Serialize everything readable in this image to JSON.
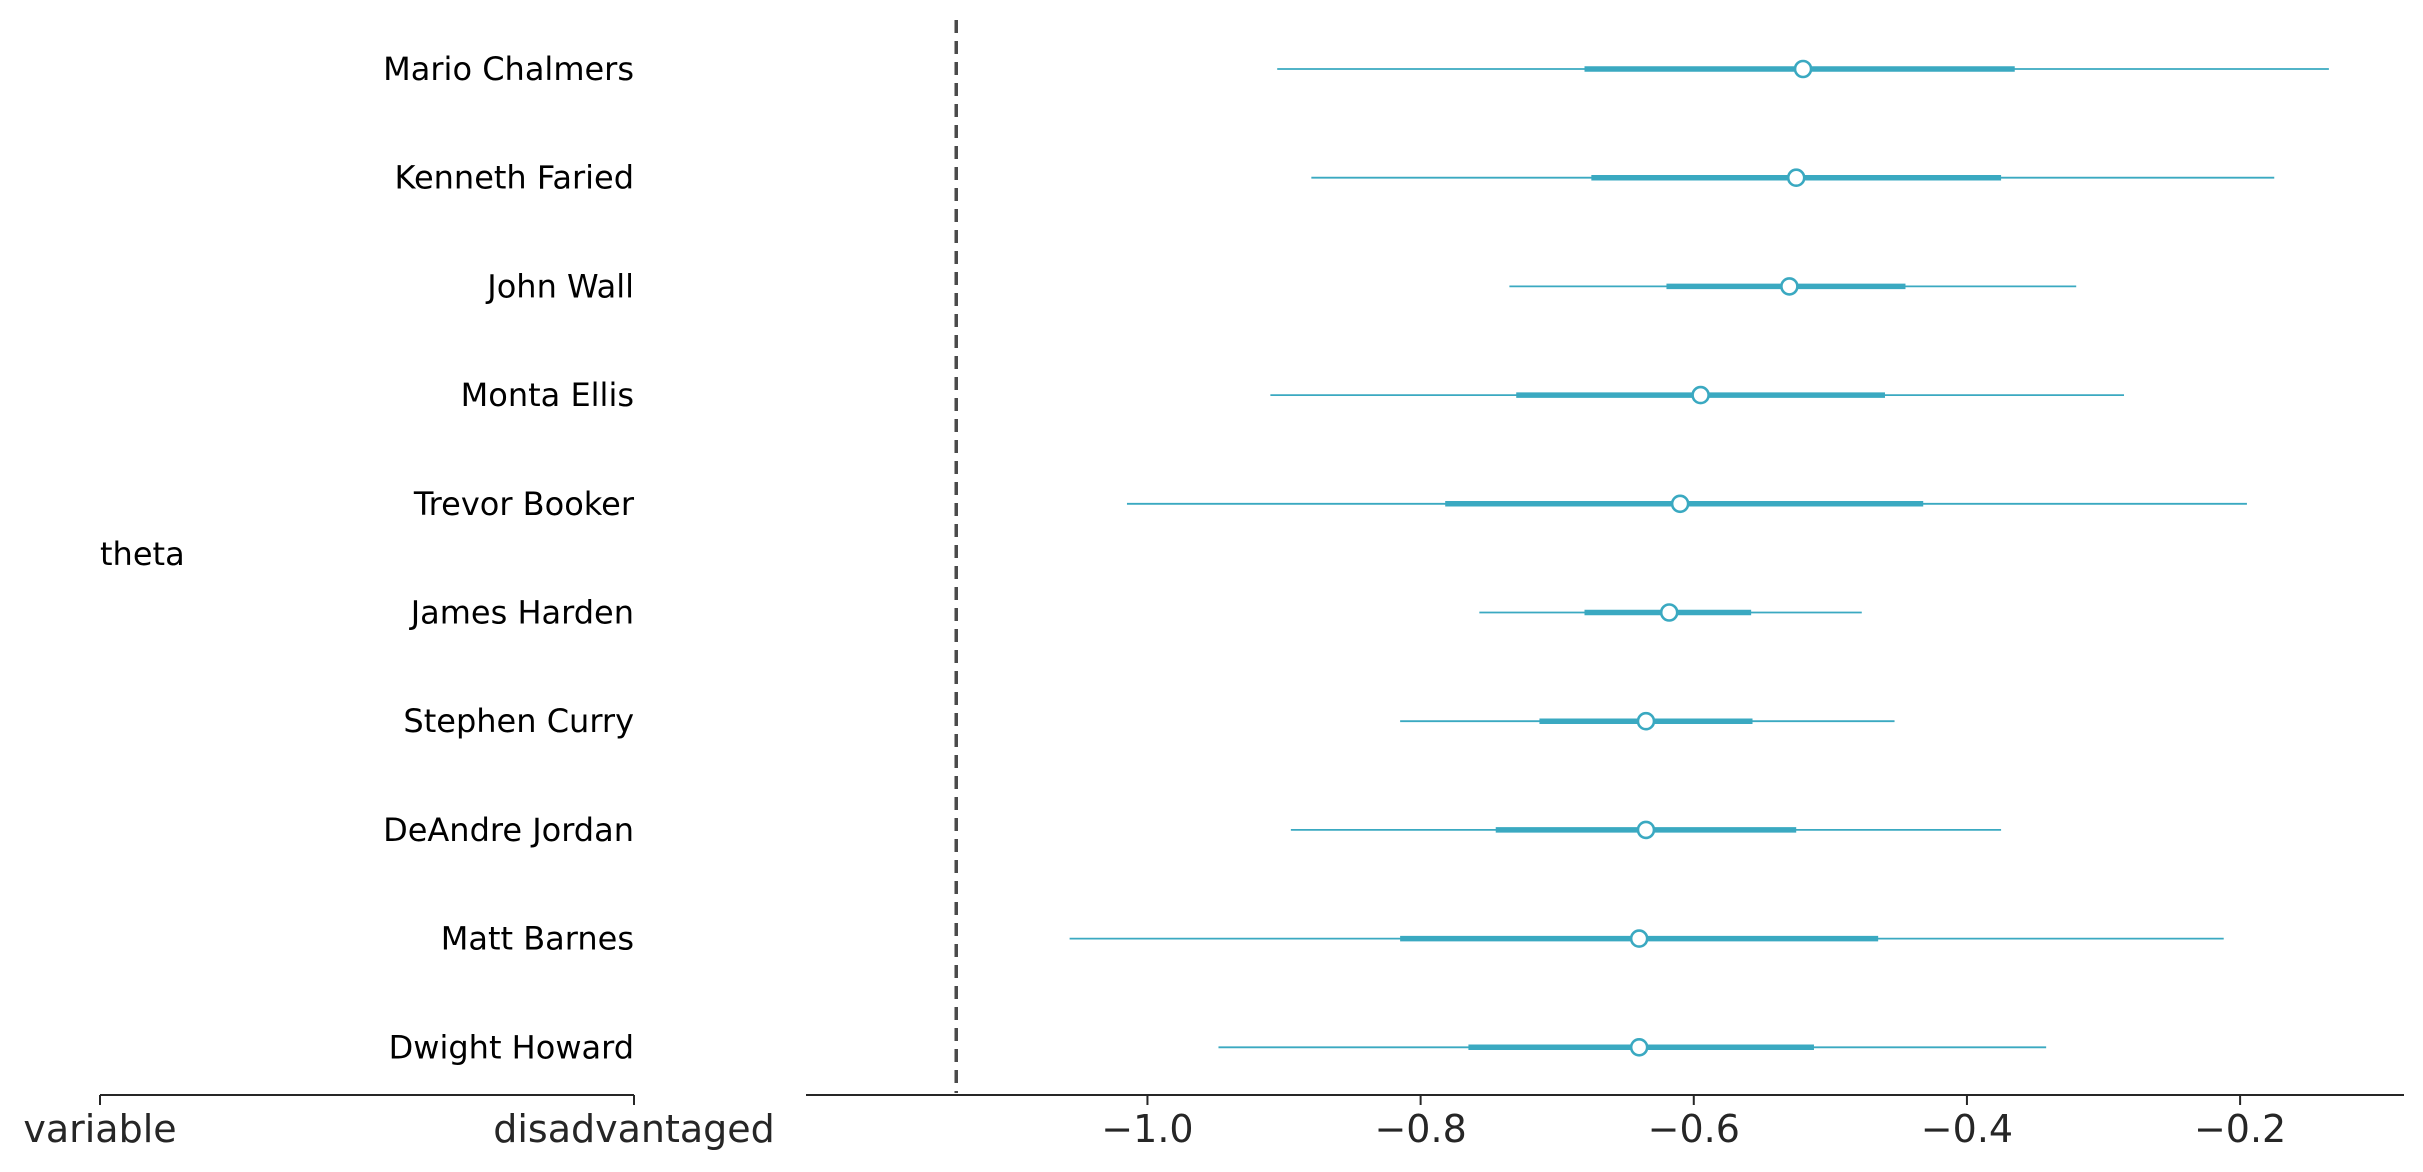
{
  "chart_data": {
    "type": "forest",
    "xlim": [
      -1.25,
      -0.08
    ],
    "x_ticks": [
      -1.0,
      -0.8,
      -0.6,
      -0.4,
      -0.2
    ],
    "x_tick_labels": [
      "−1.0",
      "−0.8",
      "−0.6",
      "−0.4",
      "−0.2"
    ],
    "reference_line": -1.14,
    "label_columns": [
      {
        "header": "variable",
        "values": [
          "theta"
        ]
      },
      {
        "header": "disadvantaged"
      }
    ],
    "colors": {
      "interval": "#3aa9c1",
      "reference": "#4a4a4a",
      "axis": "#262626"
    },
    "rows": [
      {
        "name": "Mario Chalmers",
        "median": -0.52,
        "hdi_inner": [
          -0.68,
          -0.365
        ],
        "hdi_outer": [
          -0.905,
          -0.135
        ]
      },
      {
        "name": "Kenneth Faried",
        "median": -0.525,
        "hdi_inner": [
          -0.675,
          -0.375
        ],
        "hdi_outer": [
          -0.88,
          -0.175
        ]
      },
      {
        "name": "John Wall",
        "median": -0.53,
        "hdi_inner": [
          -0.62,
          -0.445
        ],
        "hdi_outer": [
          -0.735,
          -0.32
        ]
      },
      {
        "name": "Monta Ellis",
        "median": -0.595,
        "hdi_inner": [
          -0.73,
          -0.46
        ],
        "hdi_outer": [
          -0.91,
          -0.285
        ]
      },
      {
        "name": "Trevor Booker",
        "median": -0.61,
        "hdi_inner": [
          -0.782,
          -0.432
        ],
        "hdi_outer": [
          -1.015,
          -0.195
        ]
      },
      {
        "name": "James Harden",
        "median": -0.618,
        "hdi_inner": [
          -0.68,
          -0.558
        ],
        "hdi_outer": [
          -0.757,
          -0.477
        ]
      },
      {
        "name": "Stephen Curry",
        "median": -0.635,
        "hdi_inner": [
          -0.713,
          -0.557
        ],
        "hdi_outer": [
          -0.815,
          -0.453
        ]
      },
      {
        "name": "DeAndre Jordan",
        "median": -0.635,
        "hdi_inner": [
          -0.745,
          -0.525
        ],
        "hdi_outer": [
          -0.895,
          -0.375
        ]
      },
      {
        "name": "Matt Barnes",
        "median": -0.64,
        "hdi_inner": [
          -0.815,
          -0.465
        ],
        "hdi_outer": [
          -1.057,
          -0.212
        ]
      },
      {
        "name": "Dwight Howard",
        "median": -0.64,
        "hdi_inner": [
          -0.765,
          -0.512
        ],
        "hdi_outer": [
          -0.948,
          -0.342
        ]
      }
    ]
  }
}
